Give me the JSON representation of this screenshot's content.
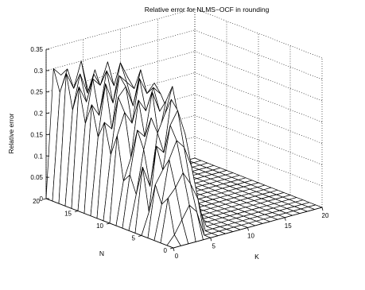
{
  "chart_data": {
    "type": "surface",
    "title": "Relative error for NLMS−OCF in rounding",
    "xlabel": "K",
    "ylabel": "N",
    "zlabel": "Relative error",
    "xlim": [
      0,
      20
    ],
    "ylim": [
      0,
      20
    ],
    "zlim": [
      0,
      0.35
    ],
    "x_ticks": [
      "0",
      "5",
      "10",
      "15",
      "20"
    ],
    "y_ticks": [
      "0",
      "5",
      "10",
      "15",
      "20"
    ],
    "z_ticks": [
      "0",
      "0.05",
      "0.1",
      "0.15",
      "0.2",
      "0.25",
      "0.3",
      "0.35"
    ],
    "grid": true,
    "x": [
      0,
      1,
      2,
      3,
      4,
      5,
      6,
      7,
      8,
      9,
      10,
      11,
      12,
      13,
      14,
      15,
      16,
      17,
      18,
      19,
      20
    ],
    "y": [
      0,
      1,
      2,
      3,
      4,
      5,
      6,
      7,
      8,
      9,
      10,
      11,
      12,
      13,
      14,
      15,
      16,
      17,
      18,
      19,
      20
    ],
    "z": [
      [
        0,
        0,
        0,
        0,
        0,
        0,
        0,
        0,
        0,
        0,
        0,
        0,
        0,
        0,
        0,
        0,
        0,
        0,
        0,
        0,
        0
      ],
      [
        0,
        0.02,
        0.05,
        0.08,
        0.06,
        0,
        0,
        0,
        0,
        0,
        0,
        0,
        0,
        0,
        0,
        0,
        0,
        0,
        0,
        0,
        0
      ],
      [
        0,
        0.1,
        0.12,
        0.15,
        0.12,
        0.08,
        0,
        0,
        0,
        0,
        0,
        0,
        0,
        0,
        0,
        0,
        0,
        0,
        0,
        0,
        0
      ],
      [
        0,
        0.08,
        0.18,
        0.22,
        0.2,
        0.15,
        0.05,
        0,
        0,
        0,
        0,
        0,
        0,
        0,
        0,
        0,
        0,
        0,
        0,
        0,
        0
      ],
      [
        0,
        0.12,
        0.15,
        0.25,
        0.28,
        0.22,
        0.1,
        0,
        0,
        0,
        0,
        0,
        0,
        0,
        0,
        0,
        0,
        0,
        0,
        0,
        0
      ],
      [
        0,
        0.05,
        0.2,
        0.18,
        0.3,
        0.25,
        0.15,
        0.02,
        0,
        0,
        0,
        0,
        0,
        0,
        0,
        0,
        0,
        0,
        0,
        0,
        0
      ],
      [
        0,
        0.15,
        0.1,
        0.22,
        0.26,
        0.32,
        0.2,
        0.05,
        0,
        0,
        0,
        0,
        0,
        0,
        0,
        0,
        0,
        0,
        0,
        0,
        0
      ],
      [
        0,
        0.08,
        0.18,
        0.25,
        0.2,
        0.28,
        0.22,
        0.08,
        0,
        0,
        0,
        0,
        0,
        0,
        0,
        0,
        0,
        0,
        0,
        0,
        0
      ],
      [
        0,
        0.12,
        0.22,
        0.2,
        0.3,
        0.25,
        0.25,
        0.1,
        0,
        0,
        0,
        0,
        0,
        0,
        0,
        0,
        0,
        0,
        0,
        0,
        0
      ],
      [
        0,
        0.1,
        0.15,
        0.28,
        0.25,
        0.3,
        0.28,
        0.12,
        0.02,
        0,
        0,
        0,
        0,
        0,
        0,
        0,
        0,
        0,
        0,
        0,
        0
      ],
      [
        0,
        0.2,
        0.25,
        0.22,
        0.32,
        0.28,
        0.3,
        0.15,
        0.02,
        0,
        0,
        0,
        0,
        0,
        0,
        0,
        0,
        0,
        0,
        0,
        0
      ],
      [
        0,
        0.15,
        0.28,
        0.3,
        0.25,
        0.33,
        0.25,
        0.12,
        0.02,
        0,
        0,
        0,
        0,
        0,
        0,
        0,
        0,
        0,
        0,
        0,
        0
      ],
      [
        0,
        0.22,
        0.2,
        0.32,
        0.3,
        0.28,
        0.3,
        0.14,
        0.02,
        0,
        0,
        0,
        0,
        0,
        0,
        0,
        0,
        0,
        0,
        0,
        0
      ],
      [
        0,
        0.18,
        0.3,
        0.25,
        0.34,
        0.3,
        0.26,
        0.12,
        0.02,
        0,
        0,
        0,
        0,
        0,
        0,
        0,
        0,
        0,
        0,
        0,
        0
      ],
      [
        0,
        0.25,
        0.22,
        0.32,
        0.28,
        0.32,
        0.28,
        0.1,
        0,
        0,
        0,
        0,
        0,
        0,
        0,
        0,
        0,
        0,
        0,
        0,
        0
      ],
      [
        0,
        0.2,
        0.3,
        0.28,
        0.33,
        0.26,
        0.24,
        0.08,
        0,
        0,
        0,
        0,
        0,
        0,
        0,
        0,
        0,
        0,
        0,
        0,
        0
      ],
      [
        0,
        0.28,
        0.24,
        0.3,
        0.26,
        0.3,
        0.2,
        0.05,
        0,
        0,
        0,
        0,
        0,
        0,
        0,
        0,
        0,
        0,
        0,
        0,
        0
      ],
      [
        0,
        0.22,
        0.3,
        0.25,
        0.3,
        0.22,
        0.15,
        0.02,
        0,
        0,
        0,
        0,
        0,
        0,
        0,
        0,
        0,
        0,
        0,
        0,
        0
      ],
      [
        0,
        0.3,
        0.26,
        0.32,
        0.24,
        0.18,
        0.1,
        0,
        0,
        0,
        0,
        0,
        0,
        0,
        0,
        0,
        0,
        0,
        0,
        0,
        0
      ],
      [
        0,
        0.25,
        0.3,
        0.22,
        0.2,
        0.12,
        0.05,
        0,
        0,
        0,
        0,
        0,
        0,
        0,
        0,
        0,
        0,
        0,
        0,
        0,
        0
      ],
      [
        0,
        0.3,
        0.28,
        0.2,
        0.15,
        0.08,
        0,
        0,
        0,
        0,
        0,
        0,
        0,
        0,
        0,
        0,
        0,
        0,
        0,
        0,
        0
      ]
    ]
  }
}
